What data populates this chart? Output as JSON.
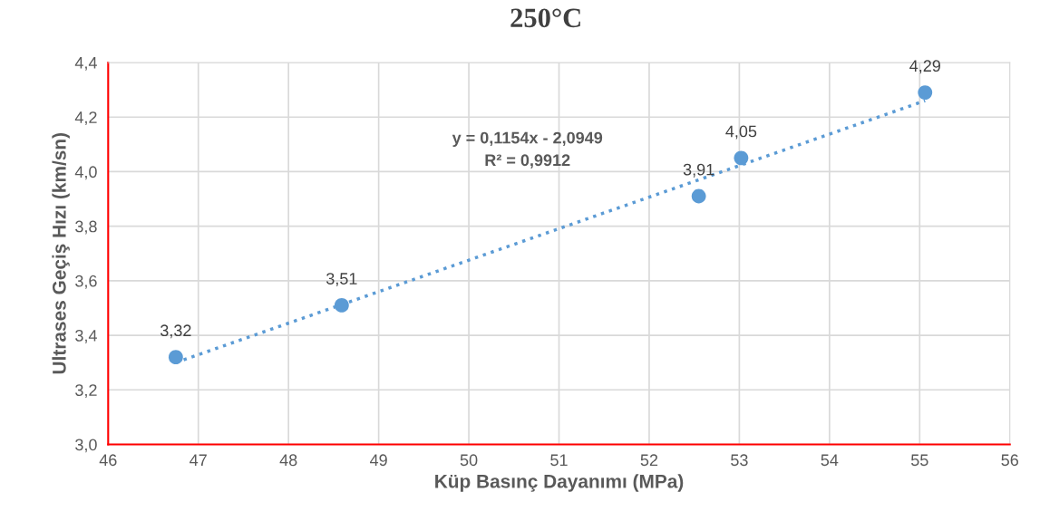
{
  "chart_data": {
    "type": "scatter",
    "title": "250°C",
    "xlabel": "Küp Basınç Dayanımı (MPa)",
    "ylabel": "Ultrases Geçiş Hızı (km/sn)",
    "x": [
      46.75,
      48.59,
      52.55,
      53.02,
      55.06
    ],
    "series": [
      {
        "color": "#5b9bd5",
        "marker": "circle",
        "values": [
          3.32,
          3.51,
          3.91,
          4.05,
          4.29
        ],
        "value_labels": [
          "3,32",
          "3,51",
          "3,91",
          "4,05",
          "4,29"
        ]
      },
      {
        "type": "line",
        "color": "#5b9bd5",
        "line_style": "dotted",
        "marker": "none",
        "x": [
          46.75,
          55.06
        ],
        "values": [
          3.3,
          4.26
        ]
      }
    ],
    "annotations": [
      "y = 0,1154x - 2,0949\nR² = 0,9912"
    ],
    "xlim": [
      46,
      56
    ],
    "xticks": [
      46,
      47,
      48,
      49,
      50,
      51,
      52,
      53,
      54,
      55,
      56
    ],
    "ylim": [
      3.0,
      4.4
    ],
    "yticks": [
      {
        "value": 3.0,
        "label": "3,0"
      },
      {
        "value": 3.2,
        "label": "3,2"
      },
      {
        "value": 3.4,
        "label": "3,4"
      },
      {
        "value": 3.6,
        "label": "3,6"
      },
      {
        "value": 3.8,
        "label": "3,8"
      },
      {
        "value": 4.0,
        "label": "4,0"
      },
      {
        "value": 4.2,
        "label": "4,2"
      },
      {
        "value": 4.4,
        "label": "4,4"
      }
    ],
    "grid": true,
    "legend": false
  }
}
